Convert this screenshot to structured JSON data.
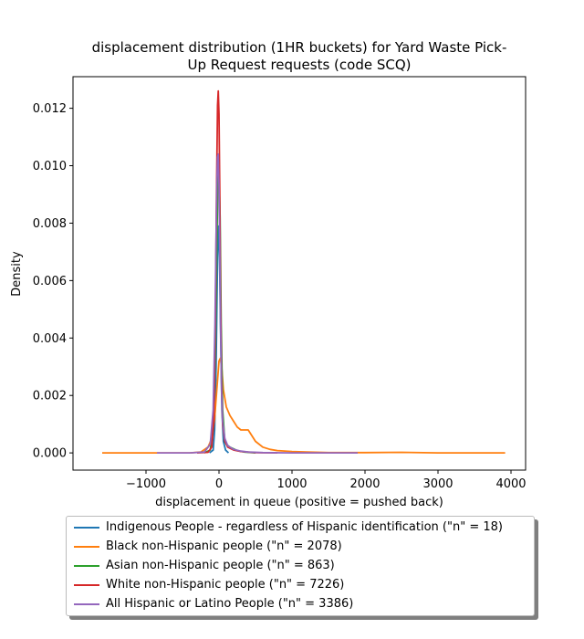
{
  "chart_data": {
    "type": "line",
    "title": "displacement distribution (1HR buckets) for Yard Waste Pick-Up Request requests (code SCQ)",
    "title_lines": [
      "displacement distribution (1HR buckets) for Yard Waste Pick-",
      "Up Request requests (code SCQ)"
    ],
    "xlabel": "displacement in queue (positive = pushed back)",
    "ylabel": "Density",
    "xlim": [
      -2000,
      4200
    ],
    "ylim": [
      -0.0006,
      0.0131
    ],
    "xticks": [
      -1000,
      0,
      1000,
      2000,
      3000,
      4000
    ],
    "xtick_labels": [
      "−1000",
      "0",
      "1000",
      "2000",
      "3000",
      "4000"
    ],
    "yticks": [
      0.0,
      0.002,
      0.004,
      0.006,
      0.008,
      0.01,
      0.012
    ],
    "ytick_labels": [
      "0.000",
      "0.002",
      "0.004",
      "0.006",
      "0.008",
      "0.010",
      "0.012"
    ],
    "grid": false,
    "legend_position": "below",
    "series": [
      {
        "name": "Indigenous People - regardless of Hispanic identification (\"n\" = 18)",
        "color": "#1f77b4",
        "x": [
          -130,
          -80,
          -60,
          -40,
          -20,
          -5,
          5,
          20,
          40,
          60,
          90,
          130
        ],
        "y": [
          0.0,
          0.0001,
          0.0008,
          0.003,
          0.0068,
          0.0079,
          0.0073,
          0.0045,
          0.0015,
          0.0004,
          0.0001,
          0.0
        ]
      },
      {
        "name": "Black non-Hispanic people (\"n\" = 2078)",
        "color": "#ff7f0e",
        "x": [
          -1600,
          -800,
          -400,
          -250,
          -150,
          -100,
          -60,
          -30,
          0,
          20,
          40,
          60,
          100,
          150,
          200,
          250,
          300,
          350,
          400,
          450,
          500,
          600,
          700,
          800,
          1000,
          1200,
          1500,
          2000,
          2500,
          3000,
          3500,
          3920
        ],
        "y": [
          0.0,
          0.0,
          0.0,
          3e-05,
          0.0002,
          0.0005,
          0.0012,
          0.0022,
          0.0032,
          0.0033,
          0.0029,
          0.0022,
          0.0016,
          0.0013,
          0.0011,
          0.0009,
          0.0008,
          0.0008,
          0.0008,
          0.0006,
          0.0004,
          0.0002,
          0.00012,
          8e-05,
          5e-05,
          3e-05,
          1e-05,
          1e-05,
          2e-05,
          0.0,
          0.0,
          0.0
        ]
      },
      {
        "name": "Asian non-Hispanic people (\"n\" = 863)",
        "color": "#2ca02c",
        "x": [
          -200,
          -120,
          -80,
          -50,
          -30,
          -15,
          0,
          15,
          30,
          50,
          80,
          100,
          150,
          250,
          350,
          500
        ],
        "y": [
          0.0,
          0.0001,
          0.0008,
          0.0035,
          0.0072,
          0.0095,
          0.0098,
          0.0082,
          0.0045,
          0.0015,
          0.0004,
          0.0003,
          0.0002,
          8e-05,
          3e-05,
          0.0
        ]
      },
      {
        "name": "White non-Hispanic people (\"n\" = 7226)",
        "color": "#d62728",
        "x": [
          -300,
          -150,
          -100,
          -70,
          -50,
          -35,
          -20,
          -10,
          0,
          10,
          20,
          35,
          50,
          80,
          120,
          200,
          300,
          500,
          800
        ],
        "y": [
          0.0,
          2e-05,
          0.0002,
          0.0012,
          0.0045,
          0.0088,
          0.0121,
          0.0126,
          0.0118,
          0.0092,
          0.0058,
          0.0025,
          0.001,
          0.0004,
          0.0002,
          0.0001,
          5e-05,
          1e-05,
          0.0
        ]
      },
      {
        "name": "All Hispanic or Latino People (\"n\" = 3386)",
        "color": "#9467bd",
        "x": [
          -850,
          -400,
          -200,
          -120,
          -80,
          -55,
          -40,
          -30,
          -20,
          -10,
          0,
          10,
          20,
          35,
          50,
          80,
          120,
          200,
          300,
          400,
          600,
          1000,
          1500,
          1900
        ],
        "y": [
          0.0,
          0.0,
          3e-05,
          0.0003,
          0.0015,
          0.0045,
          0.0075,
          0.0093,
          0.0103,
          0.0104,
          0.0093,
          0.0072,
          0.0048,
          0.0022,
          0.0011,
          0.0005,
          0.00025,
          0.00012,
          6e-05,
          3e-05,
          1e-05,
          0.0,
          0.0,
          0.0
        ]
      }
    ]
  }
}
